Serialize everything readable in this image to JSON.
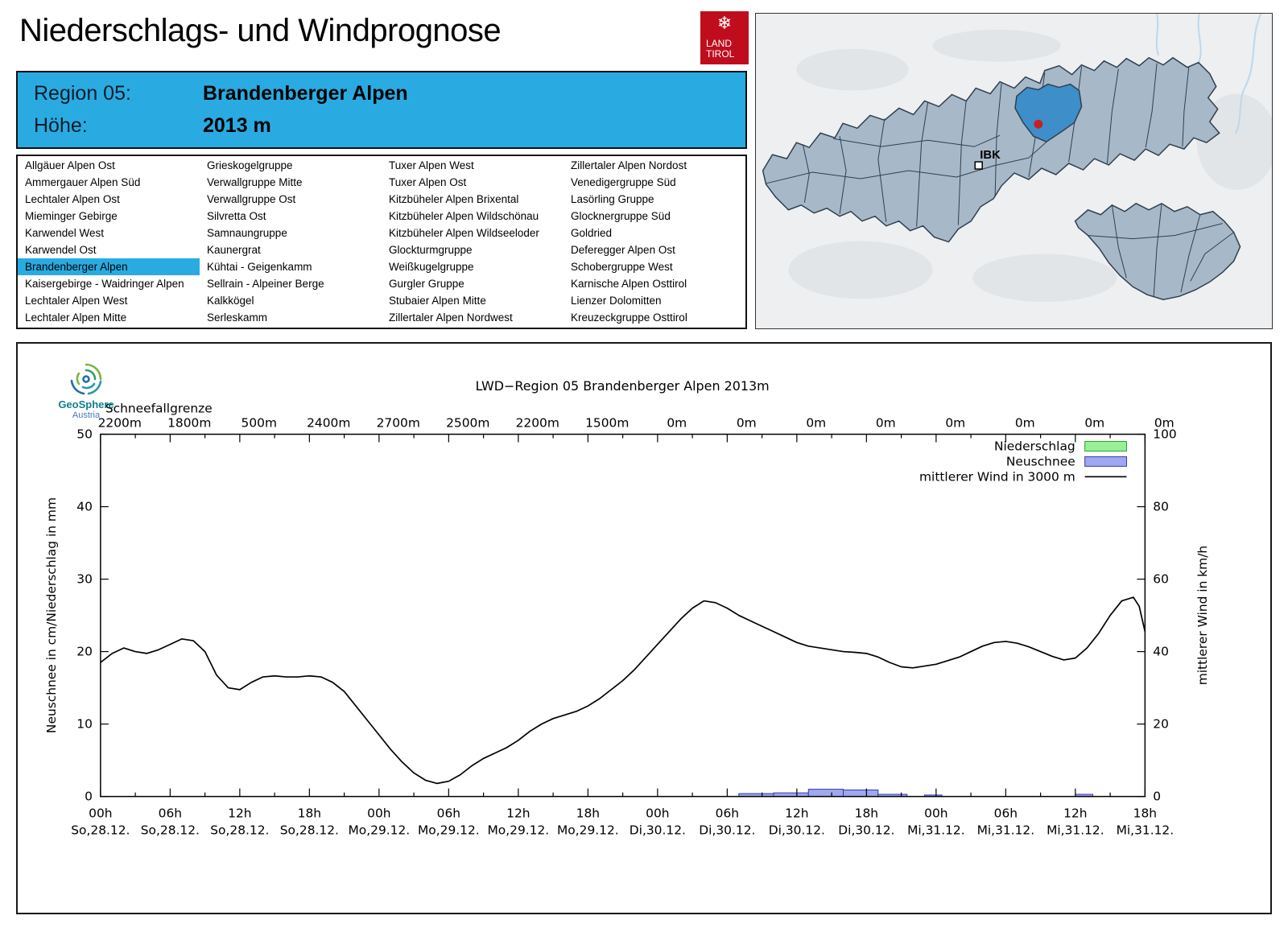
{
  "page": {
    "title": "Niederschlags- und Windprognose"
  },
  "logo": {
    "flake": "❄",
    "land": "LAND",
    "tirol": "TIROL"
  },
  "header": {
    "region_label": "Region 05:",
    "region_value": "Brandenberger Alpen",
    "hoehe_label": "Höhe:",
    "hoehe_value": "2013 m",
    "accent": "#29ABE2"
  },
  "region_list": {
    "selected": "Brandenberger Alpen",
    "columns": [
      [
        "Allgäuer Alpen Ost",
        "Ammergauer Alpen Süd",
        "Lechtaler Alpen Ost",
        "Mieminger Gebirge",
        "Karwendel West",
        "Karwendel Ost",
        "Brandenberger Alpen",
        "Kaisergebirge - Waidringer Alpen",
        "Lechtaler Alpen West",
        "Lechtaler Alpen Mitte"
      ],
      [
        "Grieskogelgruppe",
        "Verwallgruppe Mitte",
        "Verwallgruppe Ost",
        "Silvretta Ost",
        "Samnaungruppe",
        "Kaunergrat",
        "Kühtai - Geigenkamm",
        "Sellrain - Alpeiner Berge",
        "Kalkkögel",
        "Serleskamm"
      ],
      [
        "Tuxer Alpen West",
        "Tuxer Alpen Ost",
        "Kitzbüheler Alpen Brixental",
        "Kitzbüheler Alpen Wildschönau",
        "Kitzbüheler Alpen Wildseeloder",
        "Glockturmgruppe",
        "Weißkugelgruppe",
        "Gurgler Gruppe",
        "Stubaier Alpen Mitte",
        "Zillertaler Alpen Nordwest"
      ],
      [
        "Zillertaler Alpen Nordost",
        "Venedigergruppe Süd",
        "Lasörling Gruppe",
        "Glocknergruppe Süd",
        "Goldried",
        "Deferegger Alpen Ost",
        "Schobergruppe West",
        "Karnische Alpen Osttirol",
        "Lienzer Dolomitten",
        "Kreuzeckgruppe Osttirol"
      ]
    ]
  },
  "map": {
    "ibk_label": "IBK",
    "region_fill": "#A7B9C9",
    "border_color": "#2F3E4E",
    "highlight_color": "#3D8EC9",
    "marker_color": "#C62222"
  },
  "geosphere": {
    "name": "GeoSphere",
    "country": "Austria"
  },
  "chart_data": {
    "type": "line+bar",
    "title": "LWD−Region 05 Brandenberger Alpen 2013m",
    "snowline_label": "Schneefallgrenze",
    "snowline_values": [
      "2200m",
      "1800m",
      "500m",
      "2400m",
      "2700m",
      "2500m",
      "2200m",
      "1500m",
      "0m",
      "0m",
      "0m",
      "0m",
      "0m",
      "0m",
      "0m",
      "0m"
    ],
    "ylabel_left": "Neuschnee in cm/Niederschlag in mm",
    "ylabel_right": "mittlerer Wind in km/h",
    "ylim_left": [
      0,
      50
    ],
    "ylim_right": [
      0,
      100
    ],
    "x_hours_range": [
      0,
      90
    ],
    "xticks": [
      {
        "t": "00h",
        "d": "So,28.12."
      },
      {
        "t": "06h",
        "d": "So,28.12."
      },
      {
        "t": "12h",
        "d": "So,28.12."
      },
      {
        "t": "18h",
        "d": "So,28.12."
      },
      {
        "t": "00h",
        "d": "Mo,29.12."
      },
      {
        "t": "06h",
        "d": "Mo,29.12."
      },
      {
        "t": "12h",
        "d": "Mo,29.12."
      },
      {
        "t": "18h",
        "d": "Mo,29.12."
      },
      {
        "t": "00h",
        "d": "Di,30.12."
      },
      {
        "t": "06h",
        "d": "Di,30.12."
      },
      {
        "t": "12h",
        "d": "Di,30.12."
      },
      {
        "t": "18h",
        "d": "Di,30.12."
      },
      {
        "t": "00h",
        "d": "Mi,31.12."
      },
      {
        "t": "06h",
        "d": "Mi,31.12."
      },
      {
        "t": "12h",
        "d": "Mi,31.12."
      },
      {
        "t": "18h",
        "d": "Mi,31.12."
      }
    ],
    "legend": [
      {
        "label": "Niederschlag",
        "type": "box",
        "fill": "#98F098",
        "border": "#2AA02A"
      },
      {
        "label": "Neuschnee",
        "type": "box",
        "fill": "#9FA8F0",
        "border": "#3636B0"
      },
      {
        "label": "mittlerer Wind in 3000 m",
        "type": "line",
        "color": "#000000"
      }
    ],
    "niederschlag_bars": [],
    "neuschnee_bars": [
      [
        55,
        58,
        0.4
      ],
      [
        58,
        61,
        0.5
      ],
      [
        61,
        64,
        1.0
      ],
      [
        64,
        67,
        0.9
      ],
      [
        67,
        69.5,
        0.3
      ],
      [
        71,
        72.5,
        0.2
      ],
      [
        84,
        85.5,
        0.3
      ]
    ],
    "wind_series": {
      "name": "mittlerer Wind in 3000 m",
      "axis": "right",
      "points": [
        [
          0,
          37
        ],
        [
          1,
          39.5
        ],
        [
          2,
          41
        ],
        [
          3,
          40
        ],
        [
          4,
          39.5
        ],
        [
          5,
          40.5
        ],
        [
          6,
          42
        ],
        [
          7,
          43.5
        ],
        [
          8,
          43
        ],
        [
          9,
          40
        ],
        [
          10,
          33.5
        ],
        [
          11,
          30
        ],
        [
          12,
          29.5
        ],
        [
          13,
          31.5
        ],
        [
          14,
          33
        ],
        [
          15,
          33.3
        ],
        [
          16,
          33
        ],
        [
          17,
          33
        ],
        [
          18,
          33.3
        ],
        [
          19,
          33
        ],
        [
          20,
          31.5
        ],
        [
          21,
          29
        ],
        [
          22,
          25
        ],
        [
          23,
          21
        ],
        [
          24,
          17
        ],
        [
          25,
          13
        ],
        [
          26,
          9.5
        ],
        [
          27,
          6.5
        ],
        [
          28,
          4.5
        ],
        [
          29,
          3.6
        ],
        [
          30,
          4.2
        ],
        [
          31,
          6
        ],
        [
          32,
          8.5
        ],
        [
          33,
          10.5
        ],
        [
          34,
          12
        ],
        [
          35,
          13.5
        ],
        [
          36,
          15.5
        ],
        [
          37,
          18
        ],
        [
          38,
          20
        ],
        [
          39,
          21.5
        ],
        [
          40,
          22.5
        ],
        [
          41,
          23.5
        ],
        [
          42,
          25
        ],
        [
          43,
          27
        ],
        [
          44,
          29.5
        ],
        [
          45,
          32
        ],
        [
          46,
          35
        ],
        [
          47,
          38.5
        ],
        [
          48,
          42
        ],
        [
          49,
          45.5
        ],
        [
          50,
          49
        ],
        [
          51,
          52
        ],
        [
          52,
          54
        ],
        [
          53,
          53.5
        ],
        [
          54,
          52
        ],
        [
          55,
          50
        ],
        [
          56,
          48.5
        ],
        [
          57,
          47
        ],
        [
          58,
          45.5
        ],
        [
          59,
          44
        ],
        [
          60,
          42.5
        ],
        [
          61,
          41.5
        ],
        [
          62,
          41
        ],
        [
          63,
          40.5
        ],
        [
          64,
          40
        ],
        [
          65,
          39.8
        ],
        [
          66,
          39.5
        ],
        [
          67,
          38.5
        ],
        [
          68,
          37
        ],
        [
          69,
          35.8
        ],
        [
          70,
          35.5
        ],
        [
          71,
          36
        ],
        [
          72,
          36.5
        ],
        [
          73,
          37.5
        ],
        [
          74,
          38.5
        ],
        [
          75,
          40
        ],
        [
          76,
          41.5
        ],
        [
          77,
          42.5
        ],
        [
          78,
          42.8
        ],
        [
          79,
          42.3
        ],
        [
          80,
          41.3
        ],
        [
          81,
          40
        ],
        [
          82,
          38.7
        ],
        [
          83,
          37.7
        ],
        [
          84,
          38.2
        ],
        [
          85,
          41
        ],
        [
          86,
          45
        ],
        [
          87,
          50
        ],
        [
          88,
          54
        ],
        [
          89,
          55
        ],
        [
          89.5,
          52.5
        ],
        [
          90,
          45.5
        ]
      ]
    }
  }
}
